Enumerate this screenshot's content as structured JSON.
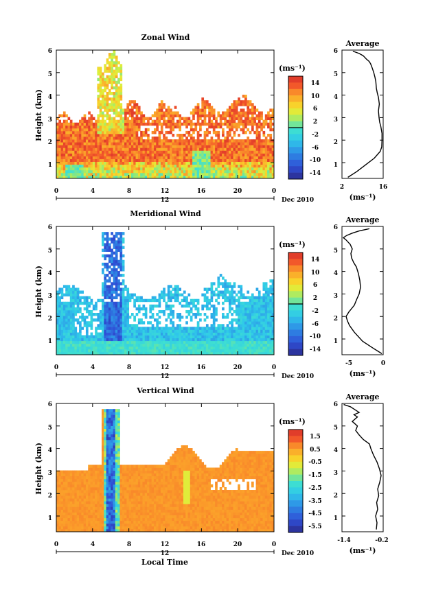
{
  "figure": {
    "bottom_xlabel": "Local Time",
    "date_label": "Dec 2010",
    "day_label": "12"
  },
  "chart_data": [
    {
      "type": "heatmap",
      "title": "Zonal Wind",
      "ylabel": "Height (km)",
      "xlabel": "",
      "xlim": [
        0,
        24
      ],
      "ylim": [
        0.3,
        6
      ],
      "xticks": [
        "0",
        "4",
        "8",
        "12",
        "16",
        "20",
        "0"
      ],
      "yticks": [
        "1",
        "2",
        "3",
        "4",
        "5",
        "6"
      ],
      "colorbar": {
        "unit": "(ms⁻¹)",
        "ticks": [
          "14",
          "10",
          "6",
          "2",
          "-2",
          "-6",
          "-10",
          "-14"
        ],
        "range": [
          -16,
          16
        ],
        "contour_level": 0
      },
      "average_profile": {
        "title": "Average",
        "xlabel": "(ms⁻¹)",
        "xlim": [
          2,
          16
        ],
        "xticks": [
          "2",
          "16"
        ],
        "yticks": [
          "1",
          "2",
          "3",
          "4",
          "5",
          "6"
        ],
        "x": [
          4,
          7,
          10,
          13,
          15,
          15.5,
          15.6,
          15.6,
          15.2,
          14.8,
          14.6,
          14.4,
          14.7,
          14.4,
          14,
          13.7,
          13.5,
          13.2,
          12.8,
          12.3,
          11.7,
          11.2,
          10.3,
          9.2,
          7.8,
          5.7
        ],
        "y": [
          0.35,
          0.6,
          0.9,
          1.2,
          1.5,
          1.7,
          2.0,
          2.3,
          2.6,
          2.8,
          3.0,
          3.3,
          3.6,
          3.9,
          4.1,
          4.3,
          4.6,
          4.8,
          5.0,
          5.2,
          5.4,
          5.5,
          5.6,
          5.75,
          5.85,
          5.95
        ]
      }
    },
    {
      "type": "heatmap",
      "title": "Meridional Wind",
      "ylabel": "Height (km)",
      "xlabel": "",
      "xlim": [
        0,
        24
      ],
      "ylim": [
        0.3,
        6
      ],
      "xticks": [
        "0",
        "4",
        "8",
        "12",
        "16",
        "20",
        "0"
      ],
      "yticks": [
        "1",
        "2",
        "3",
        "4",
        "5",
        "6"
      ],
      "colorbar": {
        "unit": "(ms⁻¹)",
        "ticks": [
          "14",
          "10",
          "6",
          "2",
          "-2",
          "-6",
          "-10",
          "-14"
        ],
        "range": [
          -16,
          16
        ],
        "contour_level": 0
      },
      "average_profile": {
        "title": "Average",
        "xlabel": "(ms⁻¹)",
        "xlim": [
          -6,
          0
        ],
        "xticks": [
          "-5",
          "0"
        ],
        "yticks": [
          "1",
          "2",
          "3",
          "4",
          "5",
          "6"
        ],
        "x": [
          -0.2,
          -1.5,
          -3.0,
          -4.2,
          -4.9,
          -5.2,
          -5.4,
          -5.0,
          -4.2,
          -3.8,
          -3.5,
          -3.3,
          -3.4,
          -3.6,
          -3.9,
          -4.3,
          -4.6,
          -4.7,
          -4.5,
          -4.8,
          -5.4,
          -5.8,
          -5.3,
          -4.5,
          -3.5,
          -2.0
        ],
        "y": [
          0.35,
          0.6,
          0.9,
          1.3,
          1.6,
          1.8,
          2.0,
          2.2,
          2.5,
          2.8,
          3.0,
          3.3,
          3.6,
          3.9,
          4.2,
          4.4,
          4.6,
          4.8,
          5.0,
          5.2,
          5.4,
          5.5,
          5.6,
          5.7,
          5.8,
          5.9
        ]
      }
    },
    {
      "type": "heatmap",
      "title": "Vertical Wind",
      "ylabel": "Height (km)",
      "xlabel": "Local Time",
      "xlim": [
        0,
        24
      ],
      "ylim": [
        0.3,
        6
      ],
      "xticks": [
        "0",
        "4",
        "8",
        "12",
        "16",
        "20",
        "0"
      ],
      "yticks": [
        "1",
        "2",
        "3",
        "4",
        "5",
        "6"
      ],
      "colorbar": {
        "unit": "(ms⁻¹)",
        "ticks": [
          "1.5",
          "0.5",
          "-0.5",
          "-1.5",
          "-2.5",
          "-3.5",
          "-4.5",
          "-5.5"
        ],
        "range": [
          -6,
          2
        ]
      },
      "average_profile": {
        "title": "Average",
        "xlabel": "(ms⁻¹)",
        "xlim": [
          -1.4,
          -0.2
        ],
        "xticks": [
          "-1.4",
          "-0.2"
        ],
        "yticks": [
          "1",
          "2",
          "3",
          "4",
          "5",
          "6"
        ],
        "x": [
          -0.4,
          -0.38,
          -0.42,
          -0.36,
          -0.39,
          -0.33,
          -0.36,
          -0.3,
          -0.26,
          -0.31,
          -0.38,
          -0.48,
          -0.56,
          -0.6,
          -0.78,
          -0.9,
          -1.0,
          -0.95,
          -1.1,
          -0.95,
          -1.05,
          -0.9,
          -1.0,
          -1.15,
          -1.35
        ],
        "y": [
          0.4,
          0.7,
          1.0,
          1.3,
          1.6,
          1.9,
          2.2,
          2.5,
          2.8,
          3.1,
          3.4,
          3.7,
          4.0,
          4.2,
          4.4,
          4.6,
          4.8,
          5.0,
          5.2,
          5.4,
          5.5,
          5.6,
          5.7,
          5.85,
          5.95
        ]
      }
    }
  ]
}
